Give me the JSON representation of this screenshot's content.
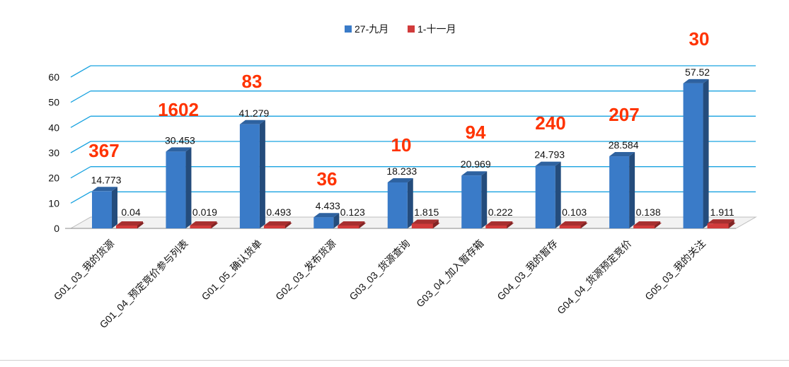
{
  "chart_data": {
    "type": "bar",
    "categories": [
      "G01_03_我的货源",
      "G01_04_预定竞价参与列表",
      "G01_05_确认货单",
      "G02_03_发布货源",
      "G03_03_货源查询",
      "G03_04_加入暂存箱",
      "G04_03_我的暂存",
      "G04_04_货源预定竞价",
      "G05_03_我的关注"
    ],
    "series": [
      {
        "name": "27-九月",
        "color": "#3a7bc8",
        "values": [
          14.773,
          30.453,
          41.279,
          4.433,
          18.233,
          20.969,
          24.793,
          28.584,
          57.52
        ],
        "labels": [
          "14.773",
          "30.453",
          "41.279",
          "4.433",
          "18.233",
          "20.969",
          "24.793",
          "28.584",
          "57.52"
        ]
      },
      {
        "name": "1-十一月",
        "color": "#d13b3b",
        "values": [
          0.04,
          0.019,
          0.493,
          0.123,
          1.815,
          0.222,
          0.103,
          0.138,
          1.911
        ],
        "labels": [
          "0.04",
          "0.019",
          "0.493",
          "0.123",
          "1.815",
          "0.222",
          "0.103",
          "0.138",
          "1.911"
        ]
      }
    ],
    "annotations": [
      "367",
      "1602",
      "83",
      "36",
      "10",
      "94",
      "240",
      "207",
      "30"
    ],
    "annotation_color": "#ff3300",
    "y_ticks": [
      "0",
      "10",
      "20",
      "30",
      "40",
      "50",
      "60"
    ],
    "ylim": [
      0,
      60
    ],
    "grid": true,
    "grid_color": "#1aa3e0",
    "legend_position": "top-center",
    "title": "",
    "xlabel": "",
    "ylabel": ""
  }
}
